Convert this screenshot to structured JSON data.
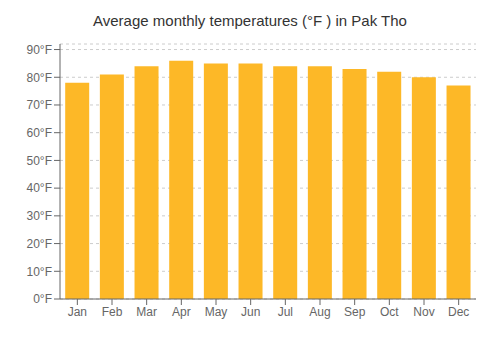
{
  "chart_data": {
    "type": "bar",
    "title": "Average monthly temperatures (°F ) in Pak Tho",
    "categories": [
      "Jan",
      "Feb",
      "Mar",
      "Apr",
      "May",
      "Jun",
      "Jul",
      "Aug",
      "Sep",
      "Oct",
      "Nov",
      "Dec"
    ],
    "values": [
      78,
      81,
      84,
      86,
      85,
      85,
      84,
      84,
      83,
      82,
      80,
      77
    ],
    "color": "#FDB827",
    "ylim": [
      0,
      92
    ],
    "yticks": [
      {
        "value": 0,
        "label": "0°F"
      },
      {
        "value": 10,
        "label": "10°F"
      },
      {
        "value": 20,
        "label": "20°F"
      },
      {
        "value": 30,
        "label": "30°F"
      },
      {
        "value": 40,
        "label": "40°F"
      },
      {
        "value": 50,
        "label": "50°F"
      },
      {
        "value": 60,
        "label": "60°F"
      },
      {
        "value": 70,
        "label": "70°F"
      },
      {
        "value": 80,
        "label": "80°F"
      },
      {
        "value": 90,
        "label": "90°F"
      }
    ],
    "grid": true
  }
}
